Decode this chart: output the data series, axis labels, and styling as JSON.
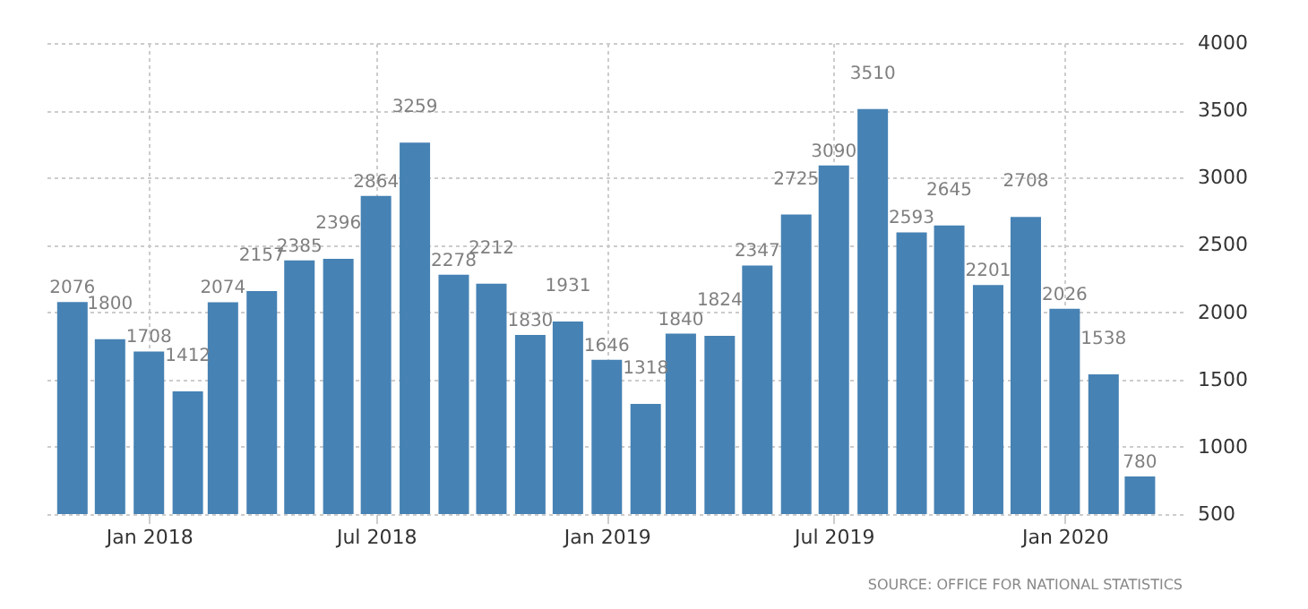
{
  "chart_data": {
    "type": "bar",
    "x": [
      "2017-11",
      "2017-12",
      "2018-01",
      "2018-02",
      "2018-03",
      "2018-04",
      "2018-05",
      "2018-06",
      "2018-07",
      "2018-08",
      "2018-09",
      "2018-10",
      "2018-11",
      "2018-12",
      "2019-01",
      "2019-02",
      "2019-03",
      "2019-04",
      "2019-05",
      "2019-06",
      "2019-07",
      "2019-08",
      "2019-09",
      "2019-10",
      "2019-11",
      "2019-12",
      "2020-01",
      "2020-02",
      "2020-03"
    ],
    "values": [
      2076,
      1800,
      1708,
      1412,
      2074,
      2157,
      2385,
      2396,
      2864,
      3259,
      2278,
      2212,
      1830,
      1931,
      1646,
      1318,
      1840,
      1824,
      2347,
      2725,
      3090,
      3510,
      2593,
      2645,
      2201,
      2708,
      2026,
      1538,
      780
    ],
    "color": "#4682b4",
    "xlim": [
      "2017-10-10",
      "2020-04-04"
    ],
    "xticks": [
      {
        "value": "2018-01",
        "label": "Jan 2018"
      },
      {
        "value": "2018-07",
        "label": "Jul 2018"
      },
      {
        "value": "2019-01",
        "label": "Jan 2019"
      },
      {
        "value": "2019-07",
        "label": "Jul 2019"
      },
      {
        "value": "2020-01",
        "label": "Jan 2020"
      }
    ],
    "ylim": [
      500,
      4000
    ],
    "yticks": [
      500,
      1000,
      1500,
      2000,
      2500,
      3000,
      3500,
      4000
    ],
    "grid": true,
    "data_labels": true,
    "annotations": [
      "SOURCE: OFFICE FOR NATIONAL STATISTICS"
    ]
  }
}
